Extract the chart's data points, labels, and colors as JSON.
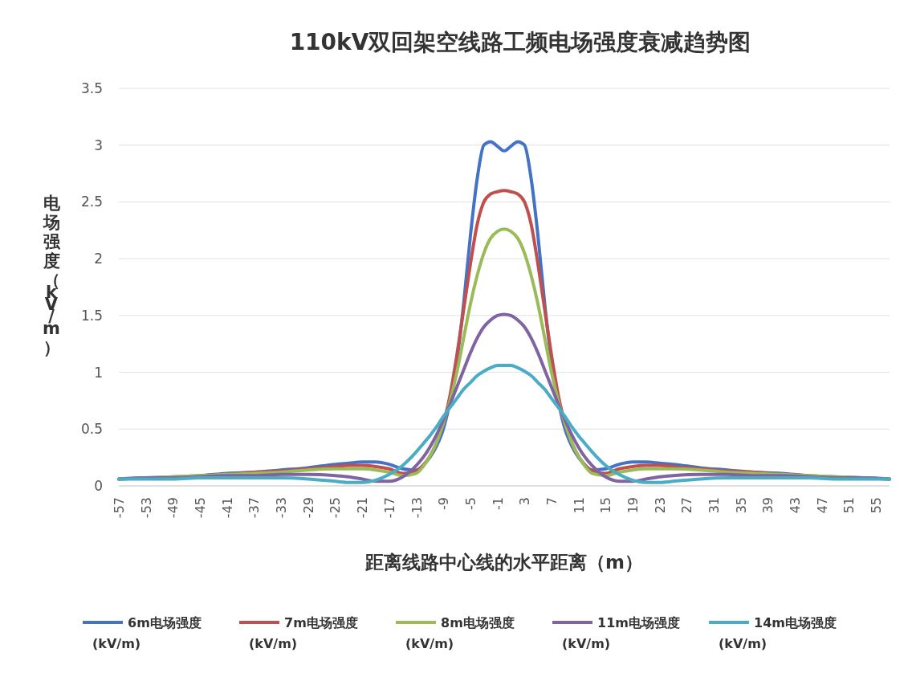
{
  "chart_data": {
    "type": "line",
    "title": "110kV双回架空线路工频电场强度衰减趋势图",
    "xlabel": "距离线路中心线的水平距离（m）",
    "ylabel": "电场强度（kV/m）",
    "x": [
      -57,
      -53,
      -49,
      -45,
      -41,
      -37,
      -33,
      -29,
      -25,
      -23,
      -21,
      -19,
      -17,
      -15,
      -13,
      -12,
      -11,
      -10,
      -9,
      -8,
      -7,
      -6,
      -5,
      -4,
      -3,
      -2,
      -1,
      0,
      1,
      2,
      3,
      4,
      5,
      6,
      7,
      8,
      9,
      10,
      11,
      12,
      13,
      15,
      17,
      19,
      21,
      23,
      25,
      29,
      33,
      37,
      41,
      45,
      49,
      53,
      57
    ],
    "xlim": [
      -57,
      57
    ],
    "xticks": [
      -57,
      -53,
      -49,
      -45,
      -41,
      -37,
      -33,
      -29,
      -25,
      -21,
      -17,
      -13,
      -9,
      -5,
      -1,
      3,
      7,
      11,
      15,
      19,
      23,
      27,
      31,
      35,
      39,
      43,
      47,
      51,
      55
    ],
    "ylim": [
      0,
      3.5
    ],
    "yticks": [
      0,
      0.5,
      1,
      1.5,
      2,
      2.5,
      3,
      3.5
    ],
    "grid": "y",
    "legend": "bottom",
    "marker": "none",
    "line_style": "solid",
    "series": [
      {
        "name": "6m电场强度(kV/m)",
        "color": "#4472c4",
        "values": [
          0.06,
          0.07,
          0.08,
          0.09,
          0.11,
          0.12,
          0.14,
          0.16,
          0.19,
          0.2,
          0.21,
          0.21,
          0.19,
          0.15,
          0.14,
          0.18,
          0.25,
          0.35,
          0.5,
          0.75,
          1.1,
          1.6,
          2.2,
          2.7,
          3.0,
          3.03,
          2.99,
          2.95,
          2.99,
          3.03,
          3.0,
          2.7,
          2.2,
          1.6,
          1.1,
          0.75,
          0.5,
          0.35,
          0.25,
          0.18,
          0.14,
          0.15,
          0.19,
          0.21,
          0.21,
          0.2,
          0.19,
          0.16,
          0.14,
          0.12,
          0.11,
          0.09,
          0.08,
          0.07,
          0.06
        ]
      },
      {
        "name": "7m电场强度(kV/m)",
        "color": "#c0504d",
        "values": [
          null,
          null,
          null,
          0.09,
          0.1,
          0.12,
          0.13,
          0.15,
          0.17,
          0.18,
          0.18,
          0.17,
          0.15,
          0.11,
          0.13,
          0.18,
          0.26,
          0.38,
          0.55,
          0.8,
          1.15,
          1.55,
          1.95,
          2.3,
          2.5,
          2.57,
          2.59,
          2.6,
          2.59,
          2.57,
          2.5,
          2.3,
          1.95,
          1.55,
          1.15,
          0.8,
          0.55,
          0.38,
          0.26,
          0.18,
          0.13,
          0.11,
          0.15,
          0.17,
          0.18,
          0.18,
          0.17,
          0.15,
          0.13,
          0.12,
          0.1,
          0.09,
          null,
          null,
          null
        ]
      },
      {
        "name": "8m电场强度(kV/m)",
        "color": "#9bbb59",
        "values": [
          0.06,
          0.07,
          0.08,
          0.09,
          0.1,
          0.11,
          0.12,
          0.14,
          0.15,
          0.15,
          0.15,
          0.14,
          0.12,
          0.09,
          0.11,
          0.17,
          0.26,
          0.38,
          0.55,
          0.75,
          1.0,
          1.3,
          1.6,
          1.85,
          2.05,
          2.18,
          2.24,
          2.26,
          2.24,
          2.18,
          2.05,
          1.85,
          1.6,
          1.3,
          1.0,
          0.75,
          0.55,
          0.38,
          0.26,
          0.17,
          0.11,
          0.09,
          0.12,
          0.14,
          0.15,
          0.15,
          0.15,
          0.14,
          0.12,
          0.11,
          0.1,
          0.09,
          0.08,
          0.07,
          0.06
        ]
      },
      {
        "name": "11m电场强度(kV/m)",
        "color": "#8064a2",
        "values": [
          0.06,
          0.07,
          0.07,
          0.08,
          0.09,
          0.09,
          0.1,
          0.1,
          0.09,
          0.08,
          0.06,
          0.04,
          0.04,
          0.08,
          0.18,
          0.25,
          0.34,
          0.45,
          0.58,
          0.72,
          0.87,
          1.02,
          1.17,
          1.3,
          1.4,
          1.46,
          1.5,
          1.51,
          1.5,
          1.46,
          1.4,
          1.3,
          1.17,
          1.02,
          0.87,
          0.72,
          0.58,
          0.45,
          0.34,
          0.25,
          0.18,
          0.08,
          0.04,
          0.04,
          0.06,
          0.08,
          0.09,
          0.1,
          0.1,
          0.09,
          0.09,
          0.08,
          0.07,
          0.07,
          0.06
        ]
      },
      {
        "name": "14m电场强度(kV/m)",
        "color": "#4bacc6",
        "values": [
          0.06,
          0.06,
          0.06,
          0.07,
          0.07,
          0.07,
          0.07,
          0.06,
          0.04,
          0.03,
          0.03,
          0.05,
          0.1,
          0.18,
          0.3,
          0.37,
          0.44,
          0.52,
          0.61,
          0.69,
          0.77,
          0.85,
          0.91,
          0.97,
          1.01,
          1.04,
          1.06,
          1.06,
          1.06,
          1.04,
          1.01,
          0.97,
          0.91,
          0.85,
          0.77,
          0.69,
          0.61,
          0.52,
          0.44,
          0.37,
          0.3,
          0.18,
          0.1,
          0.05,
          0.03,
          0.03,
          0.04,
          0.06,
          0.07,
          0.07,
          0.07,
          0.07,
          0.06,
          0.06,
          0.06
        ]
      }
    ]
  }
}
